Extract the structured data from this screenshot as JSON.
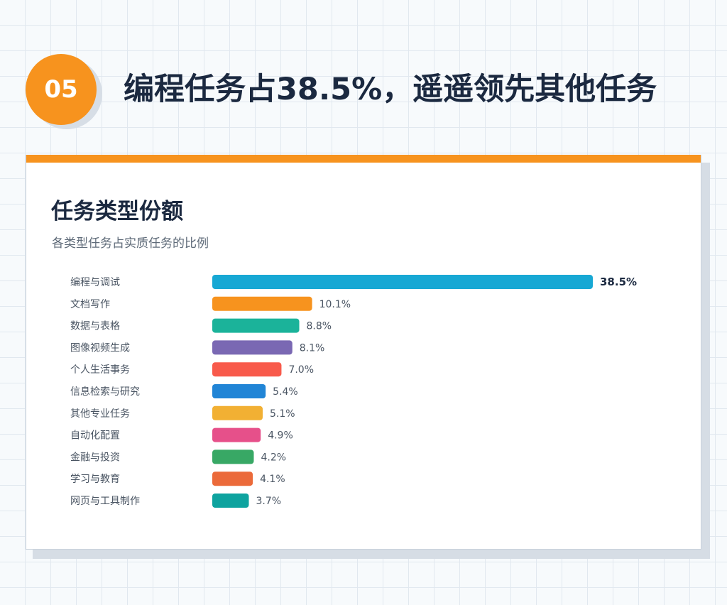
{
  "header": {
    "number": "05",
    "title": "编程任务占38.5%，遥遥领先其他任务"
  },
  "card": {
    "title": "任务类型份额",
    "subtitle": "各类型任务占实质任务的比例"
  },
  "colors": {
    "accent": "#f7931e",
    "title_text": "#1b2940"
  },
  "chart_data": {
    "type": "bar",
    "orientation": "horizontal",
    "title": "任务类型份额",
    "subtitle": "各类型任务占实质任务的比例",
    "unit": "%",
    "categories": [
      "编程与调试",
      "文档写作",
      "数据与表格",
      "图像视频生成",
      "个人生活事务",
      "信息检索与研究",
      "其他专业任务",
      "自动化配置",
      "金融与投资",
      "学习与教育",
      "网页与工具制作"
    ],
    "values": [
      38.5,
      10.1,
      8.8,
      8.1,
      7.0,
      5.4,
      5.1,
      4.9,
      4.2,
      4.1,
      3.7
    ],
    "labels": [
      "38.5%",
      "10.1%",
      "8.8%",
      "8.1%",
      "7.0%",
      "5.4%",
      "5.1%",
      "4.9%",
      "4.2%",
      "4.1%",
      "3.7%"
    ],
    "colors": [
      "#17a8d4",
      "#f7931e",
      "#1bb39a",
      "#7a68b3",
      "#f85a4b",
      "#2185d6",
      "#f2b033",
      "#e6508a",
      "#38a865",
      "#eb6a3a",
      "#0ea39f"
    ],
    "highlight_index": 0,
    "xlim": [
      0,
      38.5
    ],
    "grid": false,
    "legend": "none"
  }
}
